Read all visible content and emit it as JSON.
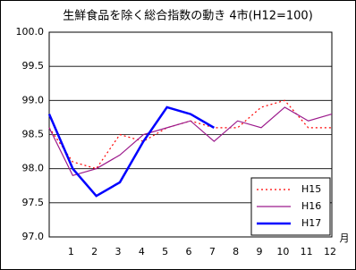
{
  "chart_data": {
    "type": "line",
    "title": "生鮮食品を除く総合指数の動き 4市(H12=100)",
    "x_label": "月",
    "categories": [
      null,
      "1",
      "2",
      "3",
      "4",
      "5",
      "6",
      "7",
      "8",
      "9",
      "10",
      "11",
      "12"
    ],
    "series": [
      {
        "name": "H15",
        "color": "#ff0000",
        "line_style": "dotted",
        "line_width": 1.2,
        "values": [
          98.6,
          98.1,
          98.0,
          98.5,
          98.4,
          98.6,
          98.7,
          98.6,
          98.6,
          98.9,
          99.0,
          98.6,
          98.6
        ]
      },
      {
        "name": "H16",
        "color": "#9c1a8c",
        "line_style": "solid",
        "line_width": 1.2,
        "values": [
          98.6,
          97.9,
          98.0,
          98.2,
          98.5,
          98.6,
          98.7,
          98.4,
          98.7,
          98.6,
          98.9,
          98.7,
          98.8
        ]
      },
      {
        "name": "H17",
        "color": "#0000ff",
        "line_style": "solid",
        "line_width": 2.5,
        "values": [
          98.8,
          98.0,
          97.6,
          97.8,
          98.4,
          98.9,
          98.8,
          98.6,
          null,
          null,
          null,
          null,
          null
        ]
      }
    ],
    "ylim": [
      97,
      100
    ],
    "yticks": [
      {
        "value": 97,
        "label": "97.0"
      },
      97.5,
      {
        "value": 98,
        "label": "98.0"
      },
      98.5,
      {
        "value": 99,
        "label": "99.0"
      },
      99.5,
      {
        "value": 100,
        "label": "100.0"
      }
    ],
    "grid": true,
    "legend": "bottom-right"
  }
}
